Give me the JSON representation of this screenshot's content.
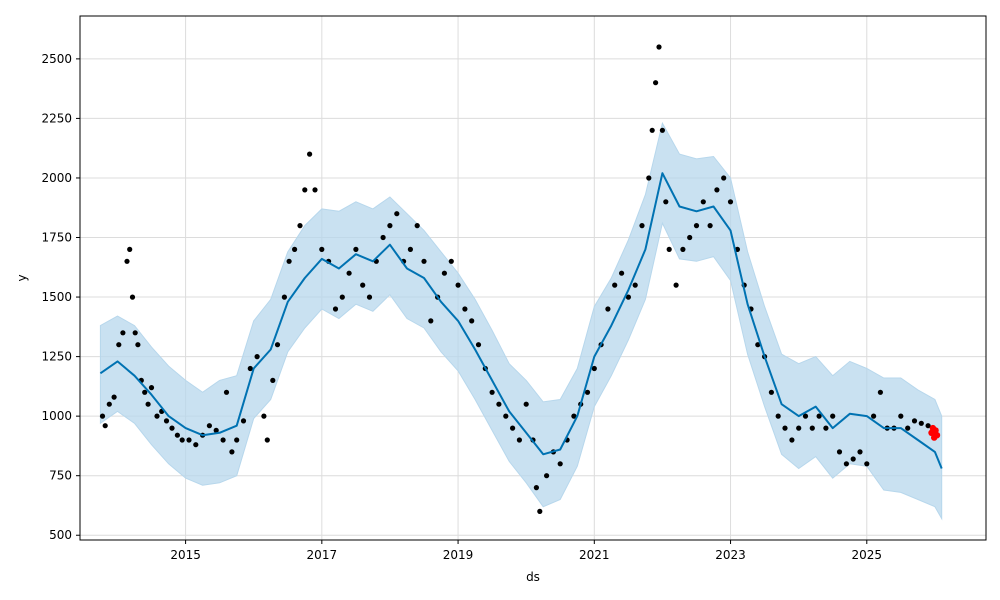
{
  "chart_data": {
    "type": "line",
    "title": "",
    "xlabel": "ds",
    "ylabel": "y",
    "xlim": [
      2013.45,
      2026.75
    ],
    "ylim": [
      480,
      2680
    ],
    "grid": true,
    "legend": "none",
    "x_ticks": [
      2015,
      2017,
      2019,
      2021,
      2023,
      2025
    ],
    "x_tick_labels": [
      "2015",
      "2017",
      "2019",
      "2021",
      "2023",
      "2025"
    ],
    "y_ticks": [
      500,
      750,
      1000,
      1250,
      1500,
      1750,
      2000,
      2250,
      2500
    ],
    "y_tick_labels": [
      "500",
      "750",
      "1000",
      "1250",
      "1500",
      "1750",
      "2000",
      "2250",
      "2500"
    ],
    "colors": {
      "forecast_line": "#0072B2",
      "uncertainty_band": "#b7d7ec",
      "observations": "#000000",
      "recent_observations": "#ff0000",
      "grid": "#dcdcdc"
    },
    "series": [
      {
        "role": "forecast",
        "x": [
          2013.75,
          2014.0,
          2014.25,
          2014.5,
          2014.75,
          2015.0,
          2015.25,
          2015.5,
          2015.75,
          2016.0,
          2016.25,
          2016.5,
          2016.75,
          2017.0,
          2017.25,
          2017.5,
          2017.75,
          2018.0,
          2018.25,
          2018.5,
          2018.75,
          2019.0,
          2019.25,
          2019.5,
          2019.75,
          2020.0,
          2020.25,
          2020.5,
          2020.75,
          2021.0,
          2021.25,
          2021.5,
          2021.75,
          2022.0,
          2022.25,
          2022.5,
          2022.75,
          2023.0,
          2023.25,
          2023.5,
          2023.75,
          2024.0,
          2024.25,
          2024.5,
          2024.75,
          2025.0,
          2025.25,
          2025.5,
          2025.75,
          2026.0,
          2026.1
        ],
        "y": [
          1180,
          1230,
          1170,
          1090,
          1000,
          950,
          920,
          930,
          960,
          1200,
          1280,
          1480,
          1580,
          1660,
          1620,
          1680,
          1650,
          1720,
          1620,
          1580,
          1480,
          1400,
          1280,
          1150,
          1020,
          930,
          840,
          860,
          1000,
          1250,
          1380,
          1530,
          1700,
          2020,
          1880,
          1860,
          1880,
          1780,
          1470,
          1250,
          1050,
          1000,
          1040,
          950,
          1010,
          1000,
          950,
          950,
          900,
          850,
          780
        ]
      },
      {
        "role": "uncertainty_upper",
        "x": [
          2013.75,
          2014.0,
          2014.25,
          2014.5,
          2014.75,
          2015.0,
          2015.25,
          2015.5,
          2015.75,
          2016.0,
          2016.25,
          2016.5,
          2016.75,
          2017.0,
          2017.25,
          2017.5,
          2017.75,
          2018.0,
          2018.25,
          2018.5,
          2018.75,
          2019.0,
          2019.25,
          2019.5,
          2019.75,
          2020.0,
          2020.25,
          2020.5,
          2020.75,
          2021.0,
          2021.25,
          2021.5,
          2021.75,
          2022.0,
          2022.25,
          2022.5,
          2022.75,
          2023.0,
          2023.25,
          2023.5,
          2023.75,
          2024.0,
          2024.25,
          2024.5,
          2024.75,
          2025.0,
          2025.25,
          2025.5,
          2025.75,
          2026.0,
          2026.1
        ],
        "y": [
          1380,
          1420,
          1380,
          1290,
          1210,
          1150,
          1100,
          1150,
          1170,
          1400,
          1490,
          1690,
          1800,
          1870,
          1860,
          1900,
          1870,
          1920,
          1850,
          1780,
          1690,
          1600,
          1490,
          1360,
          1220,
          1150,
          1060,
          1070,
          1200,
          1460,
          1580,
          1740,
          1930,
          2230,
          2100,
          2080,
          2090,
          2000,
          1690,
          1460,
          1260,
          1220,
          1250,
          1170,
          1230,
          1200,
          1160,
          1160,
          1110,
          1070,
          1000
        ]
      },
      {
        "role": "uncertainty_lower",
        "x": [
          2013.75,
          2014.0,
          2014.25,
          2014.5,
          2014.75,
          2015.0,
          2015.25,
          2015.5,
          2015.75,
          2016.0,
          2016.25,
          2016.5,
          2016.75,
          2017.0,
          2017.25,
          2017.5,
          2017.75,
          2018.0,
          2018.25,
          2018.5,
          2018.75,
          2019.0,
          2019.25,
          2019.5,
          2019.75,
          2020.0,
          2020.25,
          2020.5,
          2020.75,
          2021.0,
          2021.25,
          2021.5,
          2021.75,
          2022.0,
          2022.25,
          2022.5,
          2022.75,
          2023.0,
          2023.25,
          2023.5,
          2023.75,
          2024.0,
          2024.25,
          2024.5,
          2024.75,
          2025.0,
          2025.25,
          2025.5,
          2025.75,
          2026.0,
          2026.1
        ],
        "y": [
          970,
          1020,
          970,
          880,
          800,
          740,
          710,
          720,
          750,
          990,
          1070,
          1270,
          1370,
          1450,
          1410,
          1470,
          1440,
          1510,
          1410,
          1370,
          1270,
          1190,
          1070,
          940,
          810,
          720,
          620,
          650,
          790,
          1040,
          1170,
          1320,
          1490,
          1810,
          1660,
          1650,
          1670,
          1570,
          1260,
          1040,
          840,
          780,
          830,
          740,
          800,
          790,
          690,
          680,
          650,
          620,
          570
        ]
      },
      {
        "role": "observations",
        "x": [
          2013.78,
          2013.82,
          2013.88,
          2013.95,
          2014.02,
          2014.08,
          2014.14,
          2014.18,
          2014.22,
          2014.26,
          2014.3,
          2014.35,
          2014.4,
          2014.45,
          2014.5,
          2014.58,
          2014.65,
          2014.72,
          2014.8,
          2014.88,
          2014.95,
          2015.05,
          2015.15,
          2015.25,
          2015.35,
          2015.45,
          2015.55,
          2015.6,
          2015.68,
          2015.75,
          2015.85,
          2015.95,
          2016.05,
          2016.15,
          2016.2,
          2016.28,
          2016.35,
          2016.45,
          2016.52,
          2016.6,
          2016.68,
          2016.75,
          2016.82,
          2016.9,
          2017.0,
          2017.1,
          2017.2,
          2017.3,
          2017.4,
          2017.5,
          2017.6,
          2017.7,
          2017.8,
          2017.9,
          2018.0,
          2018.1,
          2018.2,
          2018.3,
          2018.4,
          2018.5,
          2018.6,
          2018.7,
          2018.8,
          2018.9,
          2019.0,
          2019.1,
          2019.2,
          2019.3,
          2019.4,
          2019.5,
          2019.6,
          2019.7,
          2019.8,
          2019.9,
          2020.0,
          2020.1,
          2020.15,
          2020.2,
          2020.3,
          2020.4,
          2020.5,
          2020.6,
          2020.7,
          2020.8,
          2020.9,
          2021.0,
          2021.1,
          2021.2,
          2021.3,
          2021.4,
          2021.5,
          2021.6,
          2021.7,
          2021.8,
          2021.85,
          2021.9,
          2021.95,
          2022.0,
          2022.05,
          2022.1,
          2022.2,
          2022.3,
          2022.4,
          2022.5,
          2022.6,
          2022.7,
          2022.8,
          2022.9,
          2023.0,
          2023.1,
          2023.2,
          2023.3,
          2023.4,
          2023.5,
          2023.6,
          2023.7,
          2023.8,
          2023.9,
          2024.0,
          2024.1,
          2024.2,
          2024.3,
          2024.4,
          2024.5,
          2024.6,
          2024.7,
          2024.8,
          2024.9,
          2025.0,
          2025.1,
          2025.2,
          2025.3,
          2025.4,
          2025.5,
          2025.6,
          2025.7,
          2025.8,
          2025.9
        ],
        "y": [
          1000,
          960,
          1050,
          1080,
          1300,
          1350,
          1650,
          1700,
          1500,
          1350,
          1300,
          1150,
          1100,
          1050,
          1120,
          1000,
          1020,
          980,
          950,
          920,
          900,
          900,
          880,
          920,
          960,
          940,
          900,
          1100,
          850,
          900,
          980,
          1200,
          1250,
          1000,
          900,
          1150,
          1300,
          1500,
          1650,
          1700,
          1800,
          1950,
          2100,
          1950,
          1700,
          1650,
          1450,
          1500,
          1600,
          1700,
          1550,
          1500,
          1650,
          1750,
          1800,
          1850,
          1650,
          1700,
          1800,
          1650,
          1400,
          1500,
          1600,
          1650,
          1550,
          1450,
          1400,
          1300,
          1200,
          1100,
          1050,
          1000,
          950,
          900,
          1050,
          900,
          700,
          600,
          750,
          850,
          800,
          900,
          1000,
          1050,
          1100,
          1200,
          1300,
          1450,
          1550,
          1600,
          1500,
          1550,
          1800,
          2000,
          2200,
          2400,
          2550,
          2200,
          1900,
          1700,
          1550,
          1700,
          1750,
          1800,
          1900,
          1800,
          1950,
          2000,
          1900,
          1700,
          1550,
          1450,
          1300,
          1250,
          1100,
          1000,
          950,
          900,
          950,
          1000,
          950,
          1000,
          950,
          1000,
          850,
          800,
          820,
          850,
          800,
          1000,
          1100,
          950,
          950,
          1000,
          950,
          980,
          970,
          960
        ]
      },
      {
        "role": "recent_observations",
        "x": [
          2025.95,
          2025.97,
          2025.99,
          2026.01,
          2026.03
        ],
        "y": [
          930,
          950,
          910,
          940,
          920
        ]
      }
    ]
  }
}
